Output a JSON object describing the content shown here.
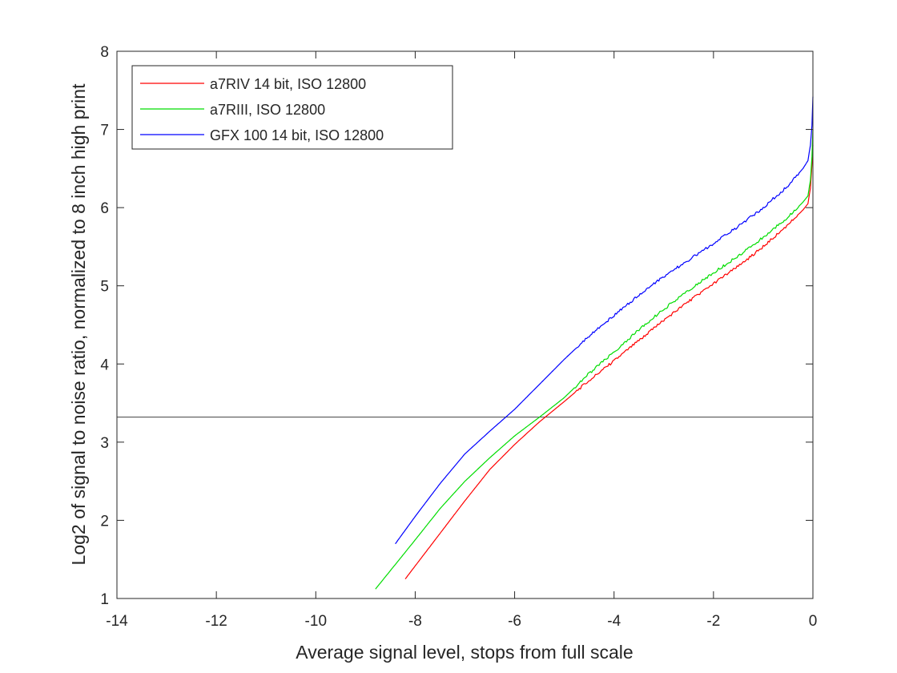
{
  "chart_data": {
    "type": "line",
    "title": "",
    "xlabel": "Average signal level, stops from full scale",
    "ylabel": "Log2 of signal to noise ratio, normalized to 8 inch high print",
    "xlim": [
      -14,
      0
    ],
    "ylim": [
      1,
      8
    ],
    "xticks": [
      -14,
      -12,
      -10,
      -8,
      -6,
      -4,
      -2,
      0
    ],
    "yticks": [
      1,
      2,
      3,
      4,
      5,
      6,
      7,
      8
    ],
    "xtick_labels": [
      "-14",
      "-12",
      "-10",
      "-8",
      "-6",
      "-4",
      "-2",
      "0"
    ],
    "ytick_labels": [
      "1",
      "2",
      "3",
      "4",
      "5",
      "6",
      "7",
      "8"
    ],
    "grid": false,
    "legend_position": "top-left",
    "reference_line": {
      "y": 3.32,
      "color": "#404040"
    },
    "series": [
      {
        "name": "a7RIV 14 bit, ISO 12800",
        "color": "#ff0000",
        "x": [
          -8.2,
          -7.6,
          -7.0,
          -6.5,
          -6.0,
          -5.5,
          -5.0,
          -4.5,
          -4.0,
          -3.5,
          -3.0,
          -2.5,
          -2.0,
          -1.5,
          -1.0,
          -0.5,
          -0.2,
          -0.1,
          -0.05,
          -0.02,
          0.0
        ],
        "y": [
          1.25,
          1.75,
          2.25,
          2.65,
          2.97,
          3.26,
          3.52,
          3.79,
          4.04,
          4.3,
          4.56,
          4.8,
          5.03,
          5.25,
          5.5,
          5.78,
          5.97,
          6.05,
          6.25,
          6.55,
          6.8
        ]
      },
      {
        "name": "a7RIII, ISO 12800",
        "color": "#00dd00",
        "x": [
          -8.8,
          -8.0,
          -7.5,
          -7.0,
          -6.5,
          -6.0,
          -5.5,
          -5.0,
          -4.5,
          -4.0,
          -3.5,
          -3.0,
          -2.5,
          -2.0,
          -1.5,
          -1.0,
          -0.5,
          -0.2,
          -0.1,
          -0.05,
          -0.02,
          0.0
        ],
        "y": [
          1.12,
          1.75,
          2.15,
          2.5,
          2.8,
          3.08,
          3.32,
          3.57,
          3.88,
          4.15,
          4.44,
          4.7,
          4.94,
          5.17,
          5.38,
          5.62,
          5.88,
          6.07,
          6.15,
          6.35,
          6.65,
          7.0
        ]
      },
      {
        "name": "GFX 100 14 bit, ISO 12800",
        "color": "#0000ff",
        "x": [
          -8.4,
          -8.0,
          -7.5,
          -7.0,
          -6.5,
          -6.0,
          -5.5,
          -5.0,
          -4.5,
          -4.0,
          -3.5,
          -3.0,
          -2.5,
          -2.0,
          -1.5,
          -1.0,
          -0.5,
          -0.2,
          -0.1,
          -0.05,
          -0.02,
          0.0
        ],
        "y": [
          1.7,
          2.05,
          2.47,
          2.85,
          3.14,
          3.42,
          3.74,
          4.06,
          4.36,
          4.62,
          4.88,
          5.12,
          5.33,
          5.54,
          5.76,
          6.0,
          6.28,
          6.5,
          6.6,
          6.8,
          7.05,
          7.42
        ]
      }
    ]
  }
}
